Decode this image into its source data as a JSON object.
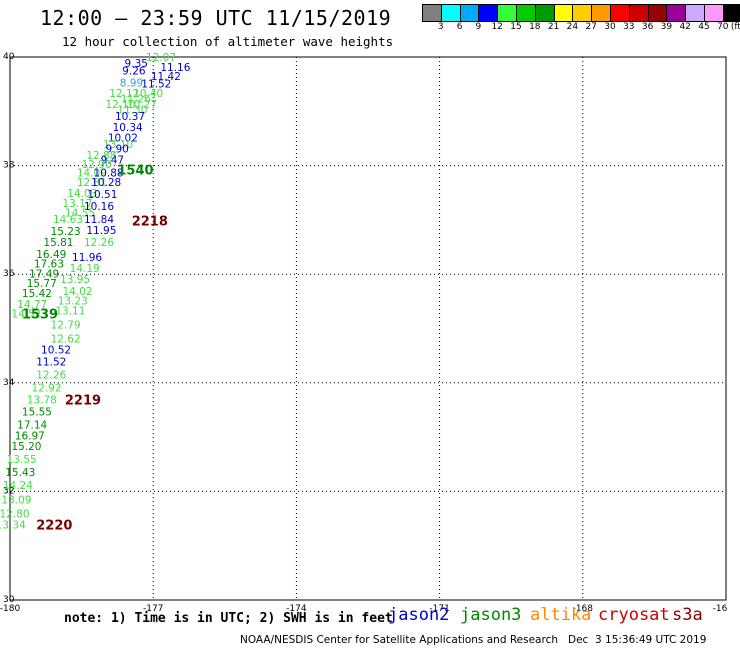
{
  "header": {
    "title": "12:00 — 23:59 UTC 11/15/2019",
    "subtitle": "12 hour collection of altimeter wave heights"
  },
  "colorbar": {
    "swatches": [
      "#7f7f7f",
      "#00ffff",
      "#00aaff",
      "#0000ff",
      "#33ff33",
      "#00cc00",
      "#009900",
      "#ffff00",
      "#ffcc00",
      "#ff9900",
      "#ff0000",
      "#cc0000",
      "#990000",
      "#990099",
      "#ccaaff",
      "#ff99ff",
      "#000000"
    ],
    "labels": [
      "3",
      "6",
      "9",
      "12",
      "15",
      "18",
      "21",
      "24",
      "27",
      "30",
      "33",
      "36",
      "39",
      "42",
      "45",
      "70",
      "(ft)"
    ]
  },
  "chart_data": {
    "type": "map",
    "lon_range": [
      -180,
      -165
    ],
    "lat_range": [
      30,
      40
    ],
    "grid": true,
    "x_ticks": [
      "-180",
      "-177",
      "-174",
      "-171",
      "-168",
      "-16"
    ],
    "y_ticks": [
      "40",
      "38",
      "36",
      "34",
      "32",
      "30"
    ],
    "colors": {
      "jason2": "#0000cc",
      "jason3": "#008800",
      "altika": "#ff8800",
      "cryosat": "#cc0000",
      "s3a": "#880000",
      "light": "#44dd44",
      "cyan": "#22aaee",
      "time": "#770000"
    },
    "points": [
      {
        "lon": -177.15,
        "lat": 39.93,
        "text": "12.07",
        "sat": "light"
      },
      {
        "lon": -177.6,
        "lat": 39.82,
        "text": "9.35",
        "sat": "jason2"
      },
      {
        "lon": -176.85,
        "lat": 39.74,
        "text": "11.16",
        "sat": "jason2"
      },
      {
        "lon": -177.65,
        "lat": 39.68,
        "text": "9.26",
        "sat": "jason2"
      },
      {
        "lon": -177.05,
        "lat": 39.58,
        "text": "11.42",
        "sat": "jason2"
      },
      {
        "lon": -177.7,
        "lat": 39.46,
        "text": "8.99",
        "sat": "cyan"
      },
      {
        "lon": -177.25,
        "lat": 39.44,
        "text": "11.52",
        "sat": "jason2"
      },
      {
        "lon": -177.92,
        "lat": 39.26,
        "text": "12.12",
        "sat": "light"
      },
      {
        "lon": -177.42,
        "lat": 39.26,
        "text": "10.40",
        "sat": "light"
      },
      {
        "lon": -177.68,
        "lat": 39.16,
        "text": "11.26",
        "sat": "light"
      },
      {
        "lon": -177.55,
        "lat": 39.06,
        "text": "10.27",
        "sat": "light"
      },
      {
        "lon": -178.0,
        "lat": 39.06,
        "text": "12.10",
        "sat": "light"
      },
      {
        "lon": -177.75,
        "lat": 38.96,
        "text": "11.30",
        "sat": "light"
      },
      {
        "lon": -177.8,
        "lat": 38.84,
        "text": "10.37",
        "sat": "jason2"
      },
      {
        "lon": -177.85,
        "lat": 38.64,
        "text": "10.34",
        "sat": "jason2"
      },
      {
        "lon": -177.95,
        "lat": 38.44,
        "text": "10.02",
        "sat": "jason2"
      },
      {
        "lon": -178.05,
        "lat": 38.32,
        "text": "13.10",
        "sat": "light"
      },
      {
        "lon": -178.0,
        "lat": 38.24,
        "text": "9.90",
        "sat": "jason2"
      },
      {
        "lon": -178.4,
        "lat": 38.12,
        "text": "12.88",
        "sat": "light"
      },
      {
        "lon": -178.1,
        "lat": 38.04,
        "text": "9.47",
        "sat": "jason2"
      },
      {
        "lon": -178.5,
        "lat": 37.96,
        "text": "12.90",
        "sat": "light"
      },
      {
        "lon": -178.6,
        "lat": 37.8,
        "text": "14.09",
        "sat": "light"
      },
      {
        "lon": -178.25,
        "lat": 37.8,
        "text": "10.88",
        "sat": "jason2"
      },
      {
        "lon": -178.6,
        "lat": 37.62,
        "text": "12.81",
        "sat": "light"
      },
      {
        "lon": -178.3,
        "lat": 37.62,
        "text": "10.28",
        "sat": "jason2"
      },
      {
        "lon": -178.8,
        "lat": 37.42,
        "text": "14.03",
        "sat": "light"
      },
      {
        "lon": -178.38,
        "lat": 37.4,
        "text": "10.51",
        "sat": "jason2"
      },
      {
        "lon": -178.9,
        "lat": 37.24,
        "text": "13.17",
        "sat": "light"
      },
      {
        "lon": -178.45,
        "lat": 37.18,
        "text": "10.16",
        "sat": "jason2"
      },
      {
        "lon": -178.85,
        "lat": 37.06,
        "text": "14.55",
        "sat": "light"
      },
      {
        "lon": -179.1,
        "lat": 36.94,
        "text": "14.63",
        "sat": "light"
      },
      {
        "lon": -178.45,
        "lat": 36.94,
        "text": "11.84",
        "sat": "jason2"
      },
      {
        "lon": -179.15,
        "lat": 36.72,
        "text": "15.23",
        "sat": "jason3"
      },
      {
        "lon": -178.4,
        "lat": 36.74,
        "text": "11.95",
        "sat": "jason2"
      },
      {
        "lon": -179.3,
        "lat": 36.52,
        "text": "15.81",
        "sat": "jason3"
      },
      {
        "lon": -178.45,
        "lat": 36.52,
        "text": "12.26",
        "sat": "light"
      },
      {
        "lon": -179.45,
        "lat": 36.3,
        "text": "16.49",
        "sat": "jason3"
      },
      {
        "lon": -178.7,
        "lat": 36.24,
        "text": "11.96",
        "sat": "jason2"
      },
      {
        "lon": -179.5,
        "lat": 36.12,
        "text": "17.63",
        "sat": "jason3"
      },
      {
        "lon": -178.75,
        "lat": 36.04,
        "text": "14.19",
        "sat": "light"
      },
      {
        "lon": -179.6,
        "lat": 35.94,
        "text": "17.49",
        "sat": "jason3"
      },
      {
        "lon": -178.95,
        "lat": 35.84,
        "text": "13.95",
        "sat": "light"
      },
      {
        "lon": -179.65,
        "lat": 35.76,
        "text": "15.77",
        "sat": "jason3"
      },
      {
        "lon": -178.9,
        "lat": 35.62,
        "text": "14.02",
        "sat": "light"
      },
      {
        "lon": -179.75,
        "lat": 35.58,
        "text": "15.42",
        "sat": "jason3"
      },
      {
        "lon": -179.0,
        "lat": 35.44,
        "text": "13.23",
        "sat": "light"
      },
      {
        "lon": -179.85,
        "lat": 35.38,
        "text": "14.77",
        "sat": "light"
      },
      {
        "lon": -179.05,
        "lat": 35.26,
        "text": "13.11",
        "sat": "light"
      },
      {
        "lon": -179.97,
        "lat": 35.2,
        "text": "14.52",
        "sat": "light"
      },
      {
        "lon": -179.15,
        "lat": 35.0,
        "text": "12.79",
        "sat": "light"
      },
      {
        "lon": -179.15,
        "lat": 34.74,
        "text": "12.62",
        "sat": "light"
      },
      {
        "lon": -179.35,
        "lat": 34.54,
        "text": "10.52",
        "sat": "jason2"
      },
      {
        "lon": -179.45,
        "lat": 34.32,
        "text": "11.52",
        "sat": "jason2"
      },
      {
        "lon": -179.45,
        "lat": 34.08,
        "text": "12.26",
        "sat": "light"
      },
      {
        "lon": -179.55,
        "lat": 33.84,
        "text": "12.92",
        "sat": "light"
      },
      {
        "lon": -179.65,
        "lat": 33.62,
        "text": "13.78",
        "sat": "light"
      },
      {
        "lon": -179.75,
        "lat": 33.4,
        "text": "15.55",
        "sat": "jason3"
      },
      {
        "lon": -179.85,
        "lat": 33.16,
        "text": "17.14",
        "sat": "jason3"
      },
      {
        "lon": -179.9,
        "lat": 32.96,
        "text": "16.97",
        "sat": "jason3"
      },
      {
        "lon": -179.97,
        "lat": 32.76,
        "text": "15.20",
        "sat": "jason3"
      },
      {
        "lon": -180.07,
        "lat": 32.52,
        "text": "13.55",
        "sat": "light"
      },
      {
        "lon": -180.1,
        "lat": 32.28,
        "text": "15.43",
        "sat": "jason3"
      },
      {
        "lon": -180.15,
        "lat": 32.04,
        "text": "14.24",
        "sat": "light"
      },
      {
        "lon": -180.18,
        "lat": 31.78,
        "text": "13.09",
        "sat": "light"
      },
      {
        "lon": -180.22,
        "lat": 31.52,
        "text": "12.80",
        "sat": "light"
      },
      {
        "lon": -180.3,
        "lat": 31.32,
        "text": "13.34",
        "sat": "light"
      }
    ],
    "time_labels": [
      {
        "lon": -177.75,
        "lat": 37.84,
        "text": "1540",
        "sat": "jason3"
      },
      {
        "lon": -177.45,
        "lat": 36.9,
        "text": "2218",
        "sat": "time"
      },
      {
        "lon": -179.75,
        "lat": 35.18,
        "text": "1539",
        "sat": "jason3"
      },
      {
        "lon": -178.85,
        "lat": 33.6,
        "text": "2219",
        "sat": "time"
      },
      {
        "lon": -179.45,
        "lat": 31.3,
        "text": "2220",
        "sat": "time"
      }
    ]
  },
  "footer": {
    "note": "note: 1) Time is in UTC; 2) SWH is in feet",
    "satellites": [
      {
        "name": "jason2",
        "color": "#0000cc"
      },
      {
        "name": "jason3",
        "color": "#008800"
      },
      {
        "name": "altika",
        "color": "#ff8800"
      },
      {
        "name": "cryosat",
        "color": "#cc0000"
      },
      {
        "name": "s3a",
        "color": "#880000"
      }
    ],
    "credit": "NOAA/NESDIS Center for Satellite Applications and Research   Dec  3 15:36:49 UTC 2019"
  }
}
